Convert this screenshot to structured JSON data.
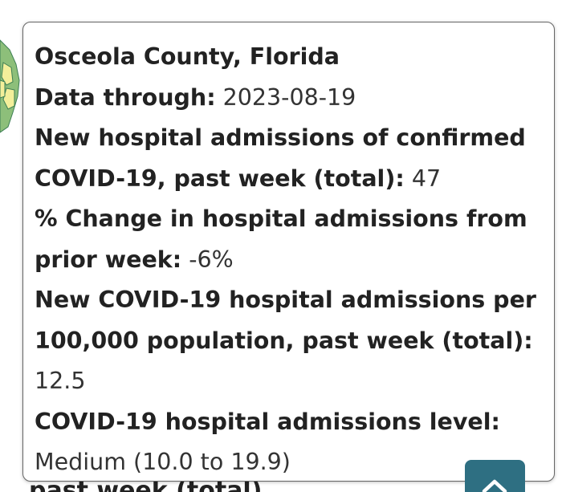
{
  "tooltip": {
    "county": "Osceola County, Florida",
    "data_through_label": "Data through:",
    "data_through_value": "2023-08-19",
    "admissions_label_1": "New hospital admissions of confirmed",
    "admissions_label_2": "COVID-19, past week (total):",
    "admissions_value": "47",
    "change_label_1": "% Change in hospital admissions from",
    "change_label_2": "prior week:",
    "change_value": "-6%",
    "per100k_label_1": "New COVID-19 hospital admissions per",
    "per100k_label_2": "100,000 population, past week (total):",
    "per100k_value": "12.5",
    "level_label": "COVID-19 hospital admissions level:",
    "level_value": "Medium (10.0 to 19.9)"
  },
  "background": {
    "partial_text": "past week (total)"
  },
  "icons": {
    "back_to_top": "chevron-up-icon"
  },
  "colors": {
    "back_to_top_bg": "#2e6f82",
    "map_green": "#8dbf7a",
    "map_yellow": "#f3ef9a",
    "map_dark": "#3d7f54"
  }
}
